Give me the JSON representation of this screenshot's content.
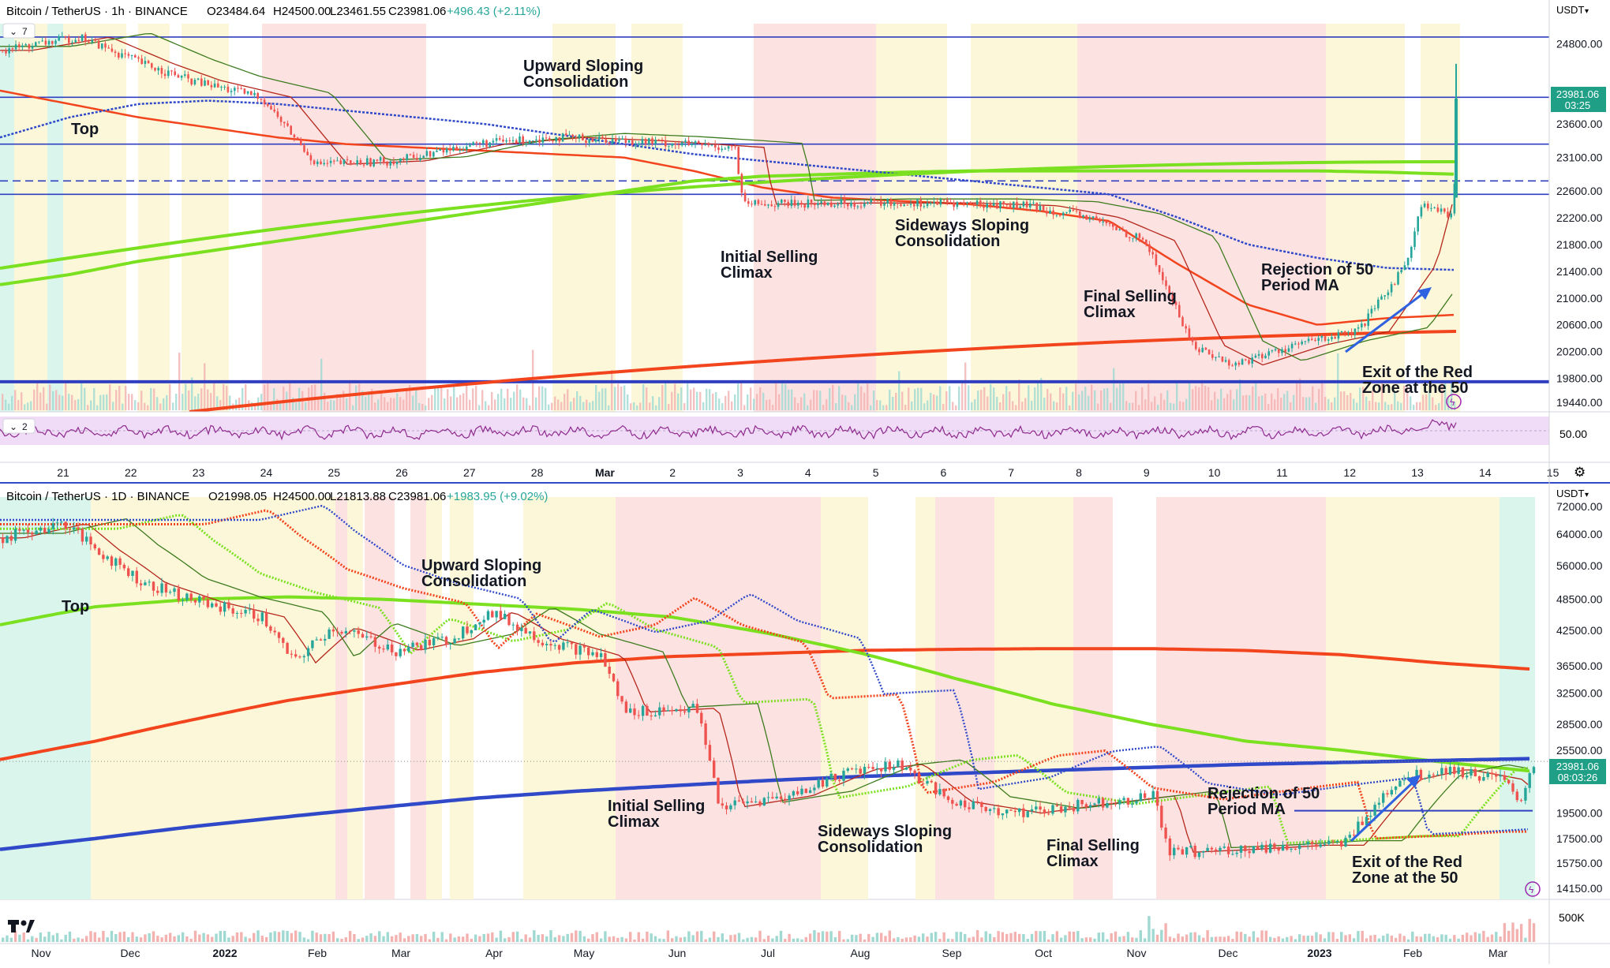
{
  "top_panel": {
    "title": "Bitcoin / TetherUS · 1h · BINANCE",
    "ohlc": {
      "o": "O23484.64",
      "h": "H24500.00",
      "l": "L23461.55",
      "c": "C23981.06",
      "chg": "+496.43 (+2.11%)"
    },
    "currency": "USDT",
    "indicator_count": "7",
    "osc_count": "2",
    "osc_label": "50.00",
    "last_price": "23981.06",
    "countdown": "03:25",
    "price_ticks": [
      24800,
      23600,
      23100,
      22600,
      22200,
      21800,
      21400,
      21000,
      20600,
      20200,
      19800,
      19440
    ],
    "time_ticks": [
      "21",
      "22",
      "23",
      "24",
      "25",
      "26",
      "27",
      "28",
      "Mar",
      "2",
      "3",
      "4",
      "5",
      "6",
      "7",
      "8",
      "9",
      "10",
      "11",
      "12",
      "13",
      "14",
      "15"
    ],
    "annotations": [
      {
        "line1": "Top",
        "line2": ""
      },
      {
        "line1": "Upward Sloping",
        "line2": "Consolidation"
      },
      {
        "line1": "Initial Selling",
        "line2": "Climax"
      },
      {
        "line1": "Sideways Sloping",
        "line2": "Consolidation"
      },
      {
        "line1": "Final Selling",
        "line2": "Climax"
      },
      {
        "line1": "Rejection of 50",
        "line2": "Period MA"
      },
      {
        "line1": "Exit of the Red",
        "line2": "Zone at the 50"
      }
    ]
  },
  "bottom_panel": {
    "title": "Bitcoin / TetherUS · 1D · BINANCE",
    "ohlc": {
      "o": "O21998.05",
      "h": "H24500.00",
      "l": "L21813.88",
      "c": "C23981.06",
      "chg": "+1983.95 (+9.02%)"
    },
    "currency": "USDT",
    "last_price": "23981.06",
    "countdown": "08:03:26",
    "volume_tick": "500K",
    "price_ticks": [
      72000,
      64000,
      56000,
      48500,
      42500,
      36500,
      32500,
      28500,
      25500,
      19500,
      17500,
      15750,
      14150
    ],
    "time_ticks": [
      "Nov",
      "Dec",
      "2022",
      "Feb",
      "Mar",
      "Apr",
      "May",
      "Jun",
      "Jul",
      "Aug",
      "Sep",
      "Oct",
      "Nov",
      "Dec",
      "2023",
      "Feb",
      "Mar"
    ],
    "annotations": [
      {
        "line1": "Top",
        "line2": ""
      },
      {
        "line1": "Upward Sloping",
        "line2": "Consolidation"
      },
      {
        "line1": "Initial Selling",
        "line2": "Climax"
      },
      {
        "line1": "Sideways Sloping",
        "line2": "Consolidation"
      },
      {
        "line1": "Final Selling",
        "line2": "Climax"
      },
      {
        "line1": "Rejection of 50",
        "line2": "Period MA"
      },
      {
        "line1": "Exit of the Red",
        "line2": "Zone at the 50"
      }
    ]
  },
  "colors": {
    "bull": "#26a69a",
    "bear": "#ef5350",
    "zone_red": "#fde2e2",
    "zone_yellow": "#fdf7d9",
    "zone_green": "#d9f5ec",
    "ma_red": "#f2441d",
    "ma_green": "#7ae01f",
    "ma_blue": "#2f49c9",
    "level_line": "#2f3fbf",
    "rsi": "#8e2a8e",
    "rsi_band": "#f0dcf7"
  },
  "chart_data": [
    {
      "type": "candlestick",
      "timeframe": "1h",
      "x": [
        "21",
        "22",
        "23",
        "24",
        "25",
        "26",
        "27",
        "28",
        "Mar",
        "2",
        "3",
        "4",
        "5",
        "6",
        "7",
        "8",
        "9",
        "10",
        "11",
        "12",
        "13",
        "14"
      ],
      "close": [
        24700,
        24000,
        23700,
        23500,
        22900,
        22950,
        23150,
        23300,
        23250,
        23300,
        22350,
        22400,
        22400,
        22450,
        22420,
        22250,
        21900,
        20300,
        20150,
        20400,
        22600,
        23981.06
      ],
      "ylim": [
        19300,
        25100
      ],
      "levels": [
        24900,
        24000,
        23300,
        22750,
        22550,
        19750
      ],
      "moving_averages": [
        {
          "color": "red",
          "values": [
            24100,
            23900,
            23700,
            23550,
            23400,
            23300,
            23250,
            23200,
            23150,
            23100,
            22900,
            22650,
            22500,
            22450,
            22400,
            22300,
            22150,
            21500,
            20900,
            20600,
            20700,
            20750
          ]
        },
        {
          "color": "green",
          "values": [
            21200,
            21350,
            21550,
            21700,
            21850,
            22000,
            22150,
            22300,
            22450,
            22600,
            22750,
            22820,
            22850,
            22880,
            22900,
            22900,
            22900,
            22900,
            22900,
            22900,
            22880,
            22850
          ]
        },
        {
          "color": "blue",
          "values": [
            23400,
            23700,
            23900,
            23950,
            23900,
            23800,
            23700,
            23600,
            23450,
            23300,
            23150,
            23050,
            22950,
            22850,
            22750,
            22650,
            22550,
            22200,
            21800,
            21600,
            21450,
            21420
          ]
        }
      ]
    },
    {
      "type": "candlestick",
      "timeframe": "1D",
      "x": [
        "Nov",
        "Dec",
        "2022",
        "Feb",
        "Mar",
        "Apr",
        "May",
        "Jun",
        "Jul",
        "Aug",
        "Sep",
        "Oct",
        "Nov",
        "Dec",
        "2023",
        "Feb",
        "Mar"
      ],
      "close": [
        63000,
        52000,
        43000,
        38000,
        41000,
        46000,
        39000,
        30000,
        20000,
        23000,
        21000,
        19500,
        20500,
        16800,
        16700,
        23000,
        23981.06
      ],
      "ylim": [
        13500,
        75000
      ],
      "moving_averages": [
        {
          "color": "red",
          "values": [
            24500,
            26500,
            29000,
            31500,
            33500,
            35500,
            37000,
            38000,
            38500,
            39000,
            39200,
            39300,
            39300,
            39000,
            38300,
            37000,
            36000
          ]
        },
        {
          "color": "green",
          "values": [
            43500,
            47000,
            48500,
            49000,
            48500,
            47500,
            46500,
            45000,
            42000,
            38500,
            34500,
            31000,
            28500,
            26500,
            25500,
            24300,
            23300
          ]
        },
        {
          "color": "blue",
          "values": [
            16700,
            17500,
            18400,
            19200,
            20000,
            20800,
            21400,
            21900,
            22400,
            22800,
            23100,
            23400,
            23700,
            24000,
            24200,
            24400,
            24600
          ]
        }
      ]
    }
  ]
}
